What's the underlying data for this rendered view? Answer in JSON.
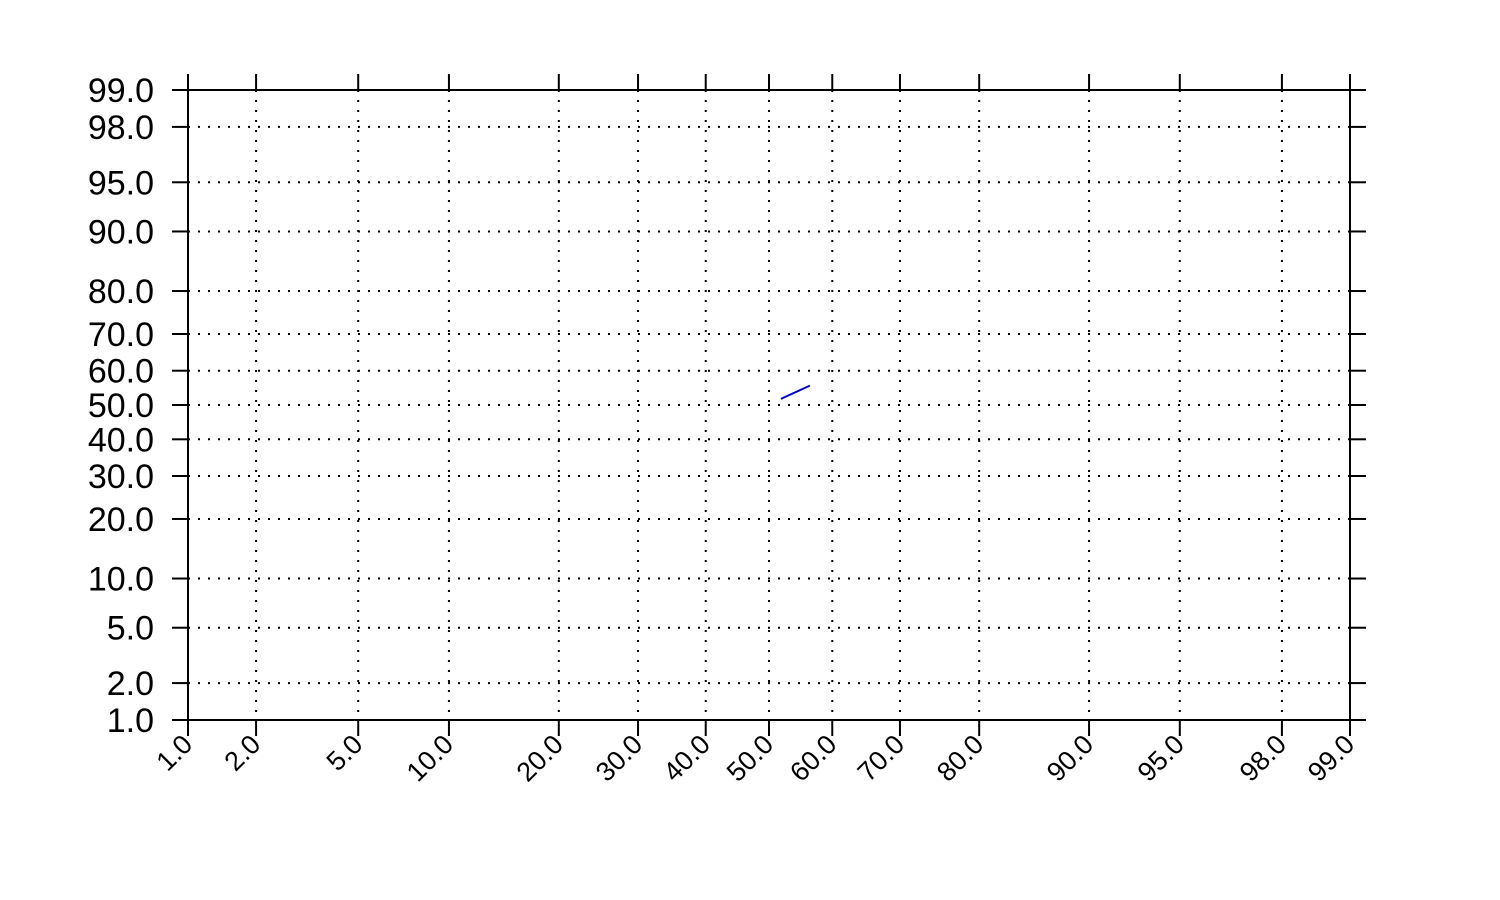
{
  "chart_data": {
    "type": "line",
    "title": "",
    "xlabel": "",
    "ylabel": "",
    "x_scale": "probability",
    "y_scale": "probability",
    "xlim": [
      1.0,
      99.0
    ],
    "ylim": [
      1.0,
      99.0
    ],
    "x_ticks": [
      "1.0",
      "2.0",
      "5.0",
      "10.0",
      "20.0",
      "30.0",
      "40.0",
      "50.0",
      "60.0",
      "70.0",
      "80.0",
      "90.0",
      "95.0",
      "98.0",
      "99.0"
    ],
    "y_ticks": [
      "1.0",
      "2.0",
      "5.0",
      "10.0",
      "20.0",
      "30.0",
      "40.0",
      "50.0",
      "60.0",
      "70.0",
      "80.0",
      "90.0",
      "95.0",
      "98.0",
      "99.0"
    ],
    "grid": true,
    "grid_style": "dotted",
    "series": [
      {
        "color": "#0000cc",
        "x": [
          51.9,
          56.5
        ],
        "y": [
          51.8,
          55.7
        ]
      }
    ]
  }
}
